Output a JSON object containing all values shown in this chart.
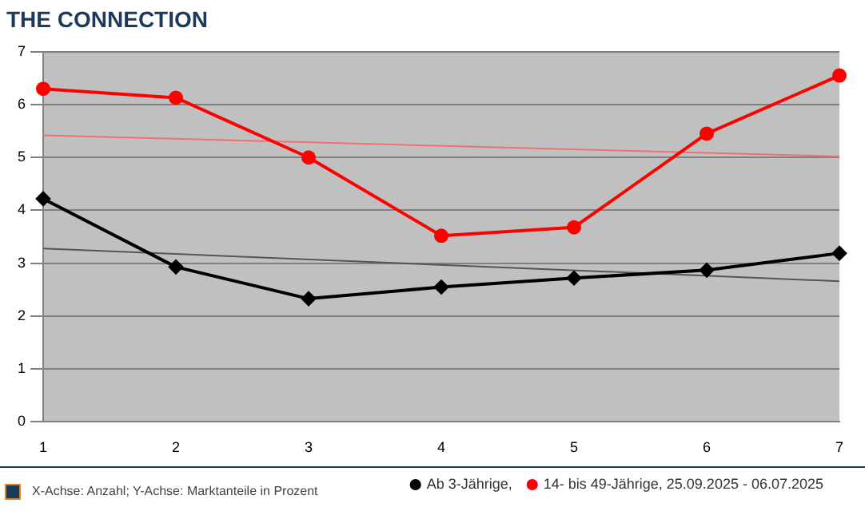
{
  "chart_data": {
    "type": "line",
    "title": "THE CONNECTION",
    "categories": [
      "1",
      "2",
      "3",
      "4",
      "5",
      "6",
      "7"
    ],
    "series": [
      {
        "name": "Ab 3-Jährige,",
        "color": "#000000",
        "marker": "diamond",
        "values": [
          4.22,
          2.93,
          2.33,
          2.55,
          2.72,
          2.87,
          3.19
        ]
      },
      {
        "name": "14- bis 49-Jährige, 25.09.2025 - 06.07.2025",
        "color": "#ff0000",
        "marker": "circle",
        "values": [
          6.3,
          6.13,
          5.0,
          3.52,
          3.68,
          5.45,
          6.55
        ]
      },
      {
        "type": "line",
        "color": "#555555",
        "marker": "none",
        "x": [
          "1",
          "7"
        ],
        "values": [
          3.28,
          2.66
        ]
      },
      {
        "type": "line",
        "color": "#f07070",
        "marker": "none",
        "x": [
          "1",
          "7"
        ],
        "values": [
          5.42,
          5.02
        ]
      }
    ],
    "ylim": [
      0,
      7
    ],
    "yticks": [
      0,
      1,
      2,
      3,
      4,
      5,
      6,
      7
    ],
    "grid": "y",
    "legend": "bottom right",
    "annotations": [
      "X-Achse: Anzahl; Y-Achse: Marktanteile in Prozent"
    ]
  }
}
